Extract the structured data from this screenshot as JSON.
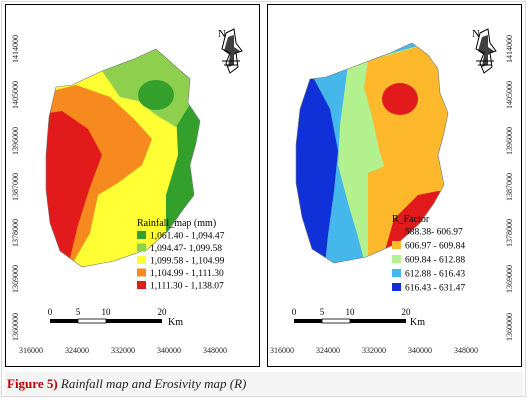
{
  "left_map": {
    "legend_title": "Rainfall_map (mm)",
    "legend": [
      {
        "label": "1,061.40 - 1,094.47",
        "color": "#33a02c"
      },
      {
        "label": "1,094.47- 1,099.58",
        "color": "#8ed04e"
      },
      {
        "label": "1,099.58 - 1,104.99",
        "color": "#ffff33"
      },
      {
        "label": "1,104.99 - 1,111.30",
        "color": "#f78a1e"
      },
      {
        "label": "1,111.30 - 1,138.07",
        "color": "#e31a1c"
      }
    ],
    "x_ticks": [
      "316000",
      "324000",
      "332000",
      "340000",
      "348000"
    ],
    "y_ticks": [
      "1414000",
      "1405000",
      "1396000",
      "1387000",
      "1378000",
      "1369000",
      "1360000"
    ],
    "scale_ticks": [
      "0",
      "5",
      "10",
      "20"
    ],
    "scale_unit": "Km",
    "north_label": "N"
  },
  "right_map": {
    "legend_title": "R_Factor",
    "legend": [
      {
        "label": "588.38- 606.97",
        "color": "#e31a1c"
      },
      {
        "label": "606.97 - 609.84",
        "color": "#fdb92b"
      },
      {
        "label": "609.84 - 612.88",
        "color": "#b3f08e"
      },
      {
        "label": "612.88 - 616.43",
        "color": "#46b7ea"
      },
      {
        "label": "616.43 - 631.47",
        "color": "#1030d8"
      }
    ],
    "x_ticks": [
      "316000",
      "324000",
      "332000",
      "340000",
      "348000"
    ],
    "y_ticks": [
      "1414000",
      "1405000",
      "1396000",
      "1387000",
      "1378000",
      "1369000",
      "1360000"
    ],
    "scale_ticks": [
      "0",
      "5",
      "10",
      "20"
    ],
    "scale_unit": "Km",
    "north_label": "N"
  },
  "caption": {
    "label": "Figure 5)",
    "text": " Rainfall map and Erosivity map (R)"
  }
}
